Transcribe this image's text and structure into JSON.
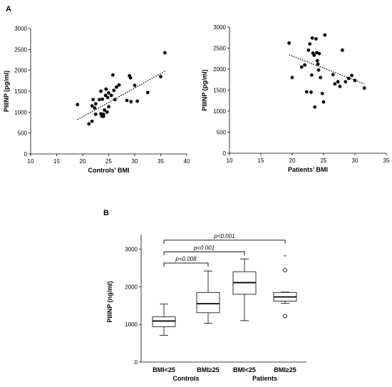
{
  "panels": {
    "a": "A",
    "b": "B"
  },
  "chart_data": [
    {
      "type": "scatter",
      "xlabel": "Controls’ BMI",
      "ylabel": "PIIINP (pg/ml)",
      "xlim": [
        10,
        40
      ],
      "ylim": [
        0,
        3000
      ],
      "xticks": [
        10,
        15,
        20,
        25,
        30,
        35,
        40
      ],
      "yticks": [
        0,
        500,
        1000,
        1500,
        2000,
        2500,
        3000
      ],
      "trendline": {
        "x": [
          19,
          36
        ],
        "y": [
          820,
          1990
        ]
      },
      "points": [
        [
          19.0,
          1180
        ],
        [
          21.2,
          720
        ],
        [
          21.8,
          780
        ],
        [
          21.8,
          1150
        ],
        [
          22.0,
          1300
        ],
        [
          22.3,
          1100
        ],
        [
          22.5,
          1200
        ],
        [
          22.5,
          950
        ],
        [
          23.2,
          1300
        ],
        [
          23.5,
          1500
        ],
        [
          23.5,
          960
        ],
        [
          23.7,
          900
        ],
        [
          23.8,
          1310
        ],
        [
          24.0,
          950
        ],
        [
          24.0,
          900
        ],
        [
          24.2,
          1050
        ],
        [
          24.4,
          1400
        ],
        [
          24.5,
          1550
        ],
        [
          24.7,
          1000
        ],
        [
          24.8,
          1350
        ],
        [
          25.0,
          1130
        ],
        [
          25.0,
          1460
        ],
        [
          25.5,
          1400
        ],
        [
          25.8,
          1890
        ],
        [
          26.0,
          1520
        ],
        [
          26.2,
          1300
        ],
        [
          26.5,
          1600
        ],
        [
          27.0,
          1650
        ],
        [
          28.5,
          1280
        ],
        [
          29.0,
          1870
        ],
        [
          29.2,
          1820
        ],
        [
          29.3,
          1250
        ],
        [
          30.0,
          1640
        ],
        [
          30.5,
          1260
        ],
        [
          32.5,
          1470
        ],
        [
          35.0,
          1850
        ],
        [
          35.8,
          2420
        ]
      ]
    },
    {
      "type": "scatter",
      "xlabel": "Patients’ BMI",
      "ylabel": "PIIINP (pg/ml)",
      "xlim": [
        10,
        35
      ],
      "ylim": [
        0,
        3000
      ],
      "xticks": [
        10,
        15,
        20,
        25,
        30,
        35
      ],
      "yticks": [
        0,
        500,
        1000,
        1500,
        2000,
        2500,
        3000
      ],
      "trendline": {
        "x": [
          19.5,
          31.5
        ],
        "y": [
          2340,
          1650
        ]
      },
      "points": [
        [
          19.5,
          2620
        ],
        [
          20.0,
          1800
        ],
        [
          21.5,
          2050
        ],
        [
          22.0,
          2100
        ],
        [
          22.3,
          1460
        ],
        [
          22.6,
          2450
        ],
        [
          22.8,
          2600
        ],
        [
          23.0,
          1450
        ],
        [
          23.1,
          1860
        ],
        [
          23.2,
          2740
        ],
        [
          23.3,
          2380
        ],
        [
          23.5,
          2330
        ],
        [
          23.6,
          1100
        ],
        [
          23.8,
          2720
        ],
        [
          23.9,
          2390
        ],
        [
          24.0,
          2200
        ],
        [
          24.1,
          2120
        ],
        [
          24.2,
          1980
        ],
        [
          24.3,
          2370
        ],
        [
          24.5,
          1800
        ],
        [
          24.8,
          1420
        ],
        [
          25.2,
          2810
        ],
        [
          25.0,
          1220
        ],
        [
          26.5,
          1870
        ],
        [
          26.8,
          1650
        ],
        [
          27.3,
          1700
        ],
        [
          27.6,
          1590
        ],
        [
          28.0,
          2450
        ],
        [
          28.5,
          1700
        ],
        [
          29.0,
          1780
        ],
        [
          29.5,
          1850
        ],
        [
          30.0,
          1730
        ],
        [
          31.5,
          1550
        ]
      ]
    },
    {
      "type": "boxplot",
      "ylabel": "PIIINP (ng/ml)",
      "ylim": [
        0,
        3200
      ],
      "yticks": [
        0,
        1000,
        2000,
        3000
      ],
      "groups": [
        {
          "label": "Controls",
          "categories": [
            "BMI<25",
            "BMI≥25"
          ]
        },
        {
          "label": "Patients",
          "categories": [
            "BMI<25",
            "BMI≥25"
          ]
        }
      ],
      "boxes": [
        {
          "group": "Controls",
          "category": "BMI<25",
          "whisker_low": 710,
          "q1": 940,
          "median": 1090,
          "q3": 1200,
          "whisker_high": 1540,
          "outliers": [],
          "extremes": []
        },
        {
          "group": "Controls",
          "category": "BMI≥25",
          "whisker_low": 1030,
          "q1": 1310,
          "median": 1550,
          "q3": 1850,
          "whisker_high": 2420,
          "outliers": [],
          "extremes": []
        },
        {
          "group": "Patients",
          "category": "BMI<25",
          "whisker_low": 1100,
          "q1": 1800,
          "median": 2110,
          "q3": 2400,
          "whisker_high": 2740,
          "outliers": [],
          "extremes": []
        },
        {
          "group": "Patients",
          "category": "BMI≥25",
          "whisker_low": 1560,
          "q1": 1620,
          "median": 1730,
          "q3": 1850,
          "whisker_high": 1860,
          "outliers": [
            2440,
            1220
          ],
          "extremes": [
            2810
          ]
        }
      ],
      "comparisons": [
        {
          "from": 0,
          "to": 1,
          "label": "p=0.008",
          "bracket_y": 2630
        },
        {
          "from": 0,
          "to": 2,
          "label": "p<0.001",
          "bracket_y": 2930
        },
        {
          "from": 0,
          "to": 3,
          "label": "p<0.001",
          "bracket_y": 3240
        }
      ],
      "extreme_marker": "*"
    }
  ]
}
